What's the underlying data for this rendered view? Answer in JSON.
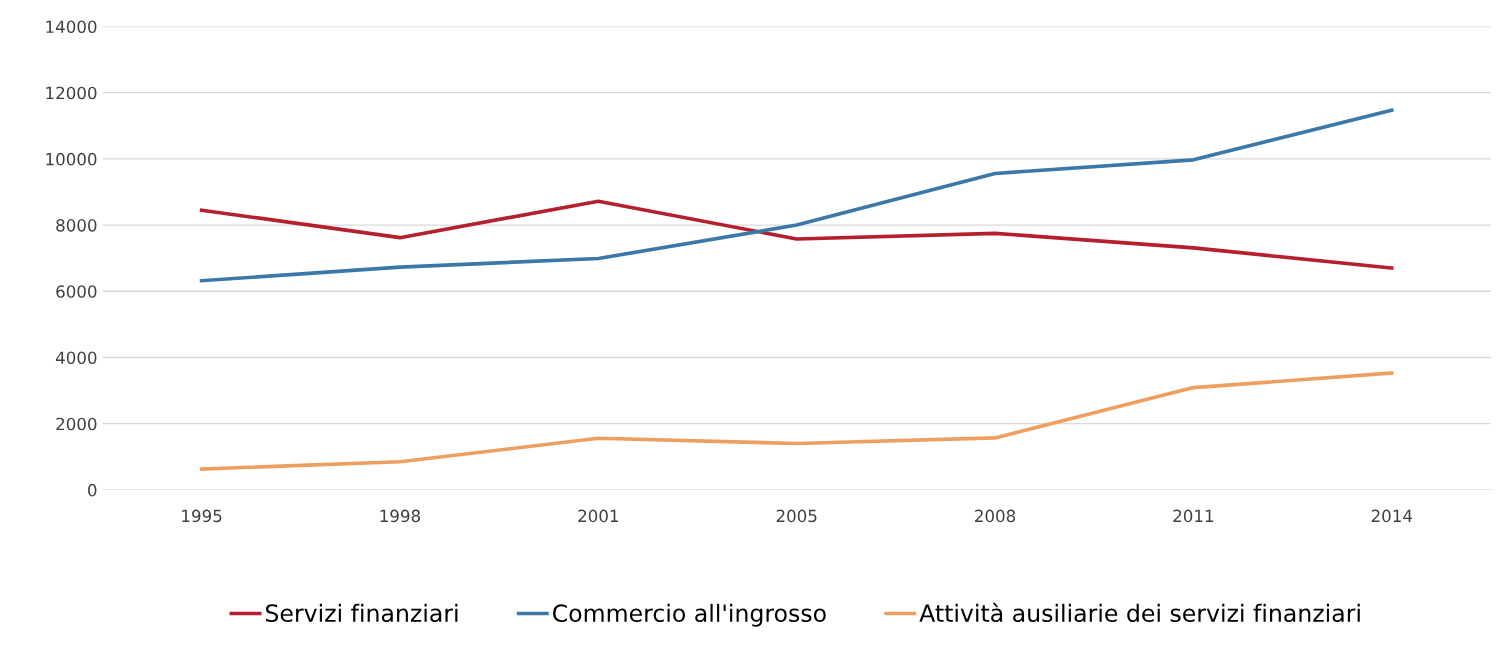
{
  "chart_data": {
    "type": "line",
    "categories": [
      "1995",
      "1998",
      "2001",
      "2005",
      "2008",
      "2011",
      "2014"
    ],
    "series": [
      {
        "name": "Servizi finanziari",
        "color": "#b51f2e",
        "values": [
          8450,
          7620,
          8720,
          7580,
          7750,
          7310,
          6700
        ]
      },
      {
        "name": "Commercio all'ingrosso",
        "color": "#3b78a8",
        "values": [
          6320,
          6730,
          6990,
          8000,
          9560,
          9970,
          11470
        ]
      },
      {
        "name": "Attività ausiliarie dei servizi finanziari",
        "color": "#ee9f60",
        "values": [
          630,
          850,
          1560,
          1400,
          1570,
          3090,
          3530
        ]
      }
    ],
    "ylim": [
      0,
      14000
    ],
    "yticks": [
      0,
      2000,
      4000,
      6000,
      8000,
      10000,
      12000,
      14000
    ],
    "grid": "y",
    "legend": "bottom",
    "marker": "none",
    "line_style": "solid"
  }
}
